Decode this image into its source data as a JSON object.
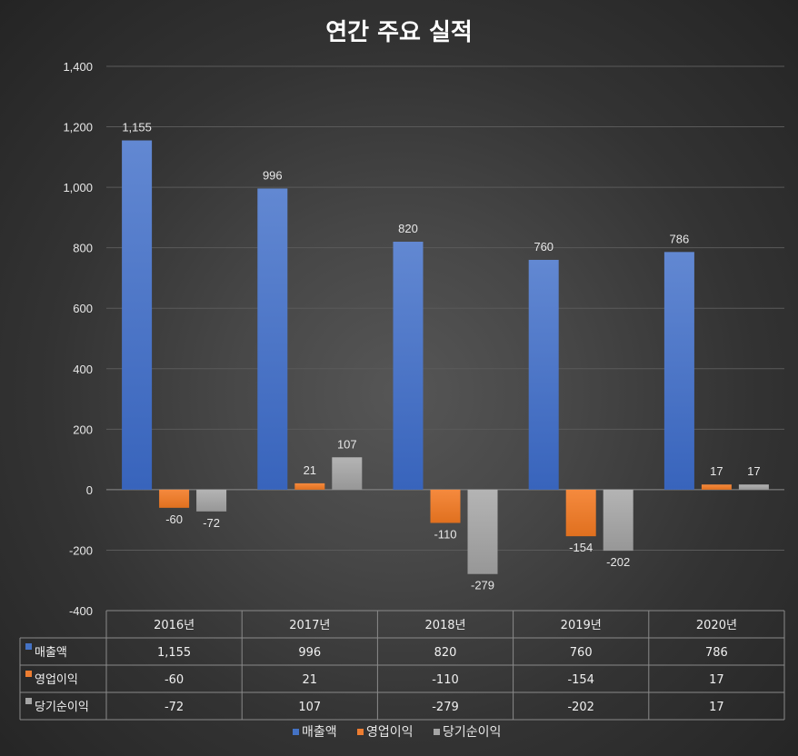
{
  "chart_data": {
    "type": "bar",
    "title": "연간 주요 실적",
    "categories": [
      "2016년",
      "2017년",
      "2018년",
      "2019년",
      "2020년"
    ],
    "series": [
      {
        "name": "매출액",
        "color": "#4472c4",
        "values": [
          1155,
          996,
          820,
          760,
          786
        ],
        "labels": [
          "1,155",
          "996",
          "820",
          "760",
          "786"
        ]
      },
      {
        "name": "영업이익",
        "color": "#ed7d31",
        "values": [
          -60,
          21,
          -110,
          -154,
          17
        ],
        "labels": [
          "-60",
          "21",
          "-110",
          "-154",
          "17"
        ]
      },
      {
        "name": "당기순이익",
        "color": "#a5a5a5",
        "values": [
          -72,
          107,
          -279,
          -202,
          17
        ],
        "labels": [
          "-72",
          "107",
          "-279",
          "-202",
          "17"
        ]
      }
    ],
    "ylim": [
      -400,
      1400
    ],
    "yticks": [
      -400,
      -200,
      0,
      200,
      400,
      600,
      800,
      1000,
      1200,
      1400
    ],
    "ytick_labels": [
      "-400",
      "-200",
      "0",
      "200",
      "400",
      "600",
      "800",
      "1,000",
      "1,200",
      "1,400"
    ],
    "grid": true,
    "data_table": true,
    "legend_position": "bottom"
  }
}
